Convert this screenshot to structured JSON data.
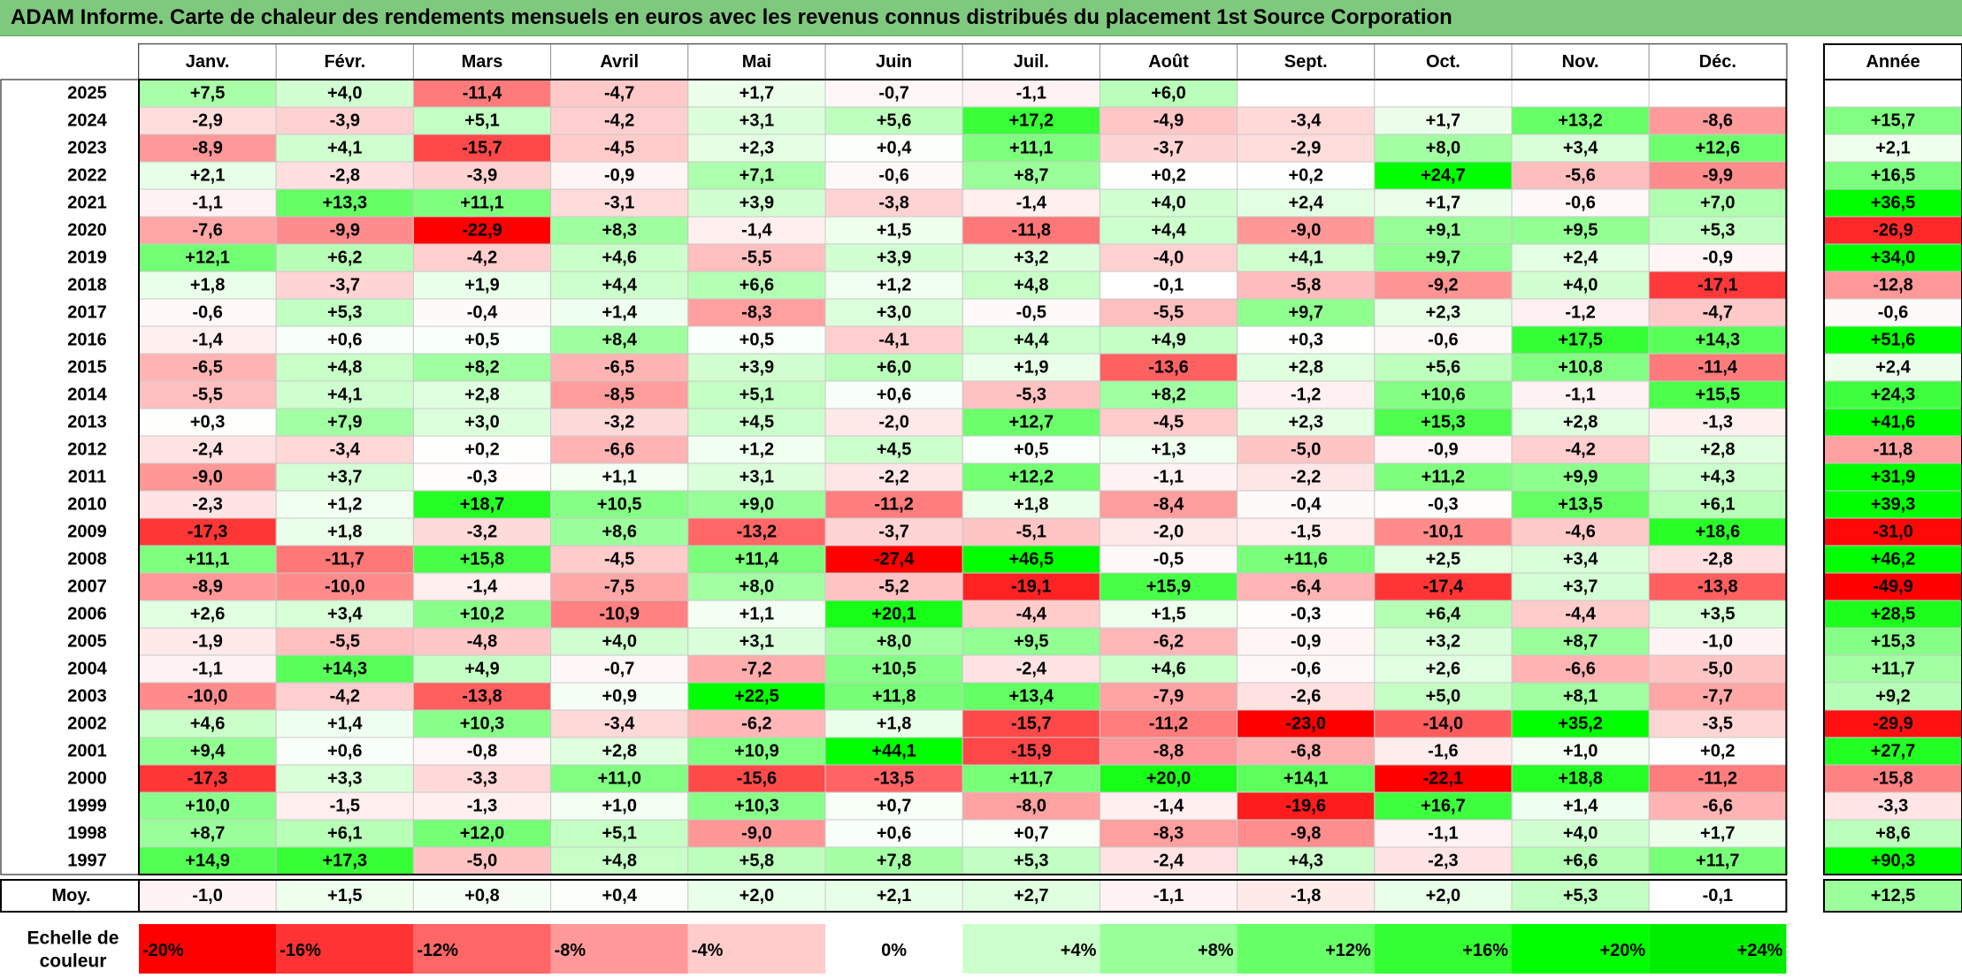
{
  "title": "ADAM Informe. Carte de chaleur des rendements mensuels en euros avec les revenus connus distribués du placement 1st Source Corporation",
  "chart_data": {
    "type": "heatmap",
    "title": "ADAM Informe. Carte de chaleur des rendements mensuels en euros avec les revenus connus distribués du placement 1st Source Corporation",
    "months": [
      "Janv.",
      "Févr.",
      "Mars",
      "Avril",
      "Mai",
      "Juin",
      "Juil.",
      "Août",
      "Sept.",
      "Oct.",
      "Nov.",
      "Déc."
    ],
    "year_header": "Année",
    "rows": [
      {
        "year": "2025",
        "values": [
          "+7,5",
          "+4,0",
          "-11,4",
          "-4,7",
          "+1,7",
          "-0,7",
          "-1,1",
          "+6,0",
          "",
          "",
          "",
          ""
        ],
        "annual": ""
      },
      {
        "year": "2024",
        "values": [
          "-2,9",
          "-3,9",
          "+5,1",
          "-4,2",
          "+3,1",
          "+5,6",
          "+17,2",
          "-4,9",
          "-3,4",
          "+1,7",
          "+13,2",
          "-8,6"
        ],
        "annual": "+15,7"
      },
      {
        "year": "2023",
        "values": [
          "-8,9",
          "+4,1",
          "-15,7",
          "-4,5",
          "+2,3",
          "+0,4",
          "+11,1",
          "-3,7",
          "-2,9",
          "+8,0",
          "+3,4",
          "+12,6"
        ],
        "annual": "+2,1"
      },
      {
        "year": "2022",
        "values": [
          "+2,1",
          "-2,8",
          "-3,9",
          "-0,9",
          "+7,1",
          "-0,6",
          "+8,7",
          "+0,2",
          "+0,2",
          "+24,7",
          "-5,6",
          "-9,9"
        ],
        "annual": "+16,5"
      },
      {
        "year": "2021",
        "values": [
          "-1,1",
          "+13,3",
          "+11,1",
          "-3,1",
          "+3,9",
          "-3,8",
          "-1,4",
          "+4,0",
          "+2,4",
          "+1,7",
          "-0,6",
          "+7,0"
        ],
        "annual": "+36,5"
      },
      {
        "year": "2020",
        "values": [
          "-7,6",
          "-9,9",
          "-22,9",
          "+8,3",
          "-1,4",
          "+1,5",
          "-11,8",
          "+4,4",
          "-9,0",
          "+9,1",
          "+9,5",
          "+5,3"
        ],
        "annual": "-26,9"
      },
      {
        "year": "2019",
        "values": [
          "+12,1",
          "+6,2",
          "-4,2",
          "+4,6",
          "-5,5",
          "+3,9",
          "+3,2",
          "-4,0",
          "+4,1",
          "+9,7",
          "+2,4",
          "-0,9"
        ],
        "annual": "+34,0"
      },
      {
        "year": "2018",
        "values": [
          "+1,8",
          "-3,7",
          "+1,9",
          "+4,4",
          "+6,6",
          "+1,2",
          "+4,8",
          "-0,1",
          "-5,8",
          "-9,2",
          "+4,0",
          "-17,1"
        ],
        "annual": "-12,8"
      },
      {
        "year": "2017",
        "values": [
          "-0,6",
          "+5,3",
          "-0,4",
          "+1,4",
          "-8,3",
          "+3,0",
          "-0,5",
          "-5,5",
          "+9,7",
          "+2,3",
          "-1,2",
          "-4,7"
        ],
        "annual": "-0,6"
      },
      {
        "year": "2016",
        "values": [
          "-1,4",
          "+0,6",
          "+0,5",
          "+8,4",
          "+0,5",
          "-4,1",
          "+4,4",
          "+4,9",
          "+0,3",
          "-0,6",
          "+17,5",
          "+14,3"
        ],
        "annual": "+51,6"
      },
      {
        "year": "2015",
        "values": [
          "-6,5",
          "+4,8",
          "+8,2",
          "-6,5",
          "+3,9",
          "+6,0",
          "+1,9",
          "-13,6",
          "+2,8",
          "+5,6",
          "+10,8",
          "-11,4"
        ],
        "annual": "+2,4"
      },
      {
        "year": "2014",
        "values": [
          "-5,5",
          "+4,1",
          "+2,8",
          "-8,5",
          "+5,1",
          "+0,6",
          "-5,3",
          "+8,2",
          "-1,2",
          "+10,6",
          "-1,1",
          "+15,5"
        ],
        "annual": "+24,3"
      },
      {
        "year": "2013",
        "values": [
          "+0,3",
          "+7,9",
          "+3,0",
          "-3,2",
          "+4,5",
          "-2,0",
          "+12,7",
          "-4,5",
          "+2,3",
          "+15,3",
          "+2,8",
          "-1,3"
        ],
        "annual": "+41,6"
      },
      {
        "year": "2012",
        "values": [
          "-2,4",
          "-3,4",
          "+0,2",
          "-6,6",
          "+1,2",
          "+4,5",
          "+0,5",
          "+1,3",
          "-5,0",
          "-0,9",
          "-4,2",
          "+2,8"
        ],
        "annual": "-11,8"
      },
      {
        "year": "2011",
        "values": [
          "-9,0",
          "+3,7",
          "-0,3",
          "+1,1",
          "+3,1",
          "-2,2",
          "+12,2",
          "-1,1",
          "-2,2",
          "+11,2",
          "+9,9",
          "+4,3"
        ],
        "annual": "+31,9"
      },
      {
        "year": "2010",
        "values": [
          "-2,3",
          "+1,2",
          "+18,7",
          "+10,5",
          "+9,0",
          "-11,2",
          "+1,8",
          "-8,4",
          "-0,4",
          "-0,3",
          "+13,5",
          "+6,1"
        ],
        "annual": "+39,3"
      },
      {
        "year": "2009",
        "values": [
          "-17,3",
          "+1,8",
          "-3,2",
          "+8,6",
          "-13,2",
          "-3,7",
          "-5,1",
          "-2,0",
          "-1,5",
          "-10,1",
          "-4,6",
          "+18,6"
        ],
        "annual": "-31,0"
      },
      {
        "year": "2008",
        "values": [
          "+11,1",
          "-11,7",
          "+15,8",
          "-4,5",
          "+11,4",
          "-27,4",
          "+46,5",
          "-0,5",
          "+11,6",
          "+2,5",
          "+3,4",
          "-2,8"
        ],
        "annual": "+46,2"
      },
      {
        "year": "2007",
        "values": [
          "-8,9",
          "-10,0",
          "-1,4",
          "-7,5",
          "+8,0",
          "-5,2",
          "-19,1",
          "+15,9",
          "-6,4",
          "-17,4",
          "+3,7",
          "-13,8"
        ],
        "annual": "-49,9"
      },
      {
        "year": "2006",
        "values": [
          "+2,6",
          "+3,4",
          "+10,2",
          "-10,9",
          "+1,1",
          "+20,1",
          "-4,4",
          "+1,5",
          "-0,3",
          "+6,4",
          "-4,4",
          "+3,5"
        ],
        "annual": "+28,5"
      },
      {
        "year": "2005",
        "values": [
          "-1,9",
          "-5,5",
          "-4,8",
          "+4,0",
          "+3,1",
          "+8,0",
          "+9,5",
          "-6,2",
          "-0,9",
          "+3,2",
          "+8,7",
          "-1,0"
        ],
        "annual": "+15,3"
      },
      {
        "year": "2004",
        "values": [
          "-1,1",
          "+14,3",
          "+4,9",
          "-0,7",
          "-7,2",
          "+10,5",
          "-2,4",
          "+4,6",
          "-0,6",
          "+2,6",
          "-6,6",
          "-5,0"
        ],
        "annual": "+11,7"
      },
      {
        "year": "2003",
        "values": [
          "-10,0",
          "-4,2",
          "-13,8",
          "+0,9",
          "+22,5",
          "+11,8",
          "+13,4",
          "-7,9",
          "-2,6",
          "+5,0",
          "+8,1",
          "-7,7"
        ],
        "annual": "+9,2"
      },
      {
        "year": "2002",
        "values": [
          "+4,6",
          "+1,4",
          "+10,3",
          "-3,4",
          "-6,2",
          "+1,8",
          "-15,7",
          "-11,2",
          "-23,0",
          "-14,0",
          "+35,2",
          "-3,5"
        ],
        "annual": "-29,9"
      },
      {
        "year": "2001",
        "values": [
          "+9,4",
          "+0,6",
          "-0,8",
          "+2,8",
          "+10,9",
          "+44,1",
          "-15,9",
          "-8,8",
          "-6,8",
          "-1,6",
          "+1,0",
          "+0,2"
        ],
        "annual": "+27,7"
      },
      {
        "year": "2000",
        "values": [
          "-17,3",
          "+3,3",
          "-3,3",
          "+11,0",
          "-15,6",
          "-13,5",
          "+11,7",
          "+20,0",
          "+14,1",
          "-22,1",
          "+18,8",
          "-11,2"
        ],
        "annual": "-15,8"
      },
      {
        "year": "1999",
        "values": [
          "+10,0",
          "-1,5",
          "-1,3",
          "+1,0",
          "+10,3",
          "+0,7",
          "-8,0",
          "-1,4",
          "-19,6",
          "+16,7",
          "+1,4",
          "-6,6"
        ],
        "annual": "-3,3"
      },
      {
        "year": "1998",
        "values": [
          "+8,7",
          "+6,1",
          "+12,0",
          "+5,1",
          "-9,0",
          "+0,6",
          "+0,7",
          "-8,3",
          "-9,8",
          "-1,1",
          "+4,0",
          "+1,7"
        ],
        "annual": "+8,6"
      },
      {
        "year": "1997",
        "values": [
          "+14,9",
          "+17,3",
          "-5,0",
          "+4,8",
          "+5,8",
          "+7,8",
          "+5,3",
          "-2,4",
          "+4,3",
          "-2,3",
          "+6,6",
          "+11,7"
        ],
        "annual": "+90,3"
      }
    ],
    "average": {
      "label": "Moy.",
      "values": [
        "-1,0",
        "+1,5",
        "+0,8",
        "+0,4",
        "+2,0",
        "+2,1",
        "+2,7",
        "-1,1",
        "-1,8",
        "+2,0",
        "+5,3",
        "-0,1"
      ],
      "annual": "+12,5"
    },
    "scale": {
      "label_line1": "Echelle de",
      "label_line2": "couleur",
      "steps": [
        {
          "label": "-20%",
          "color": "#ff0000"
        },
        {
          "label": "-16%",
          "color": "#ff3333"
        },
        {
          "label": "-12%",
          "color": "#ff6666"
        },
        {
          "label": "-8%",
          "color": "#ff9999"
        },
        {
          "label": "-4%",
          "color": "#ffcccc"
        },
        {
          "label": "0%",
          "color": "#ffffff"
        },
        {
          "label": "+4%",
          "color": "#ccffcc"
        },
        {
          "label": "+8%",
          "color": "#99ff99"
        },
        {
          "label": "+12%",
          "color": "#66ff66"
        },
        {
          "label": "+16%",
          "color": "#33ff33"
        },
        {
          "label": "+20%",
          "color": "#00ff00"
        },
        {
          "label": "+24%",
          "color": "#00ee00"
        }
      ]
    },
    "colors": {
      "positive_max": "#00ff00",
      "negative_max": "#ff0000",
      "neutral": "#ffffff",
      "title_bar": "#7fc97f"
    }
  }
}
